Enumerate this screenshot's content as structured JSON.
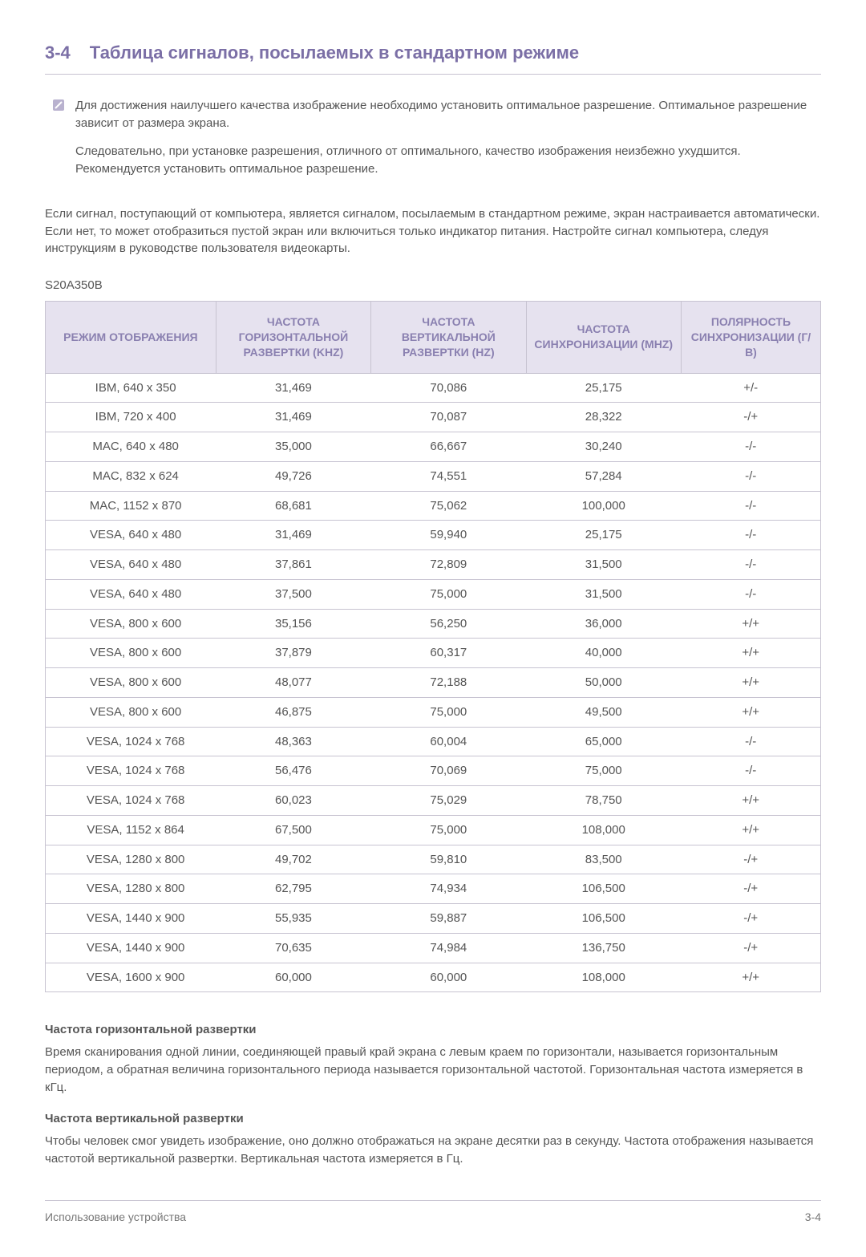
{
  "section": {
    "number": "3-4",
    "title": "Таблица сигналов, посылаемых в стандартном режиме"
  },
  "note": {
    "para1": "Для достижения наилучшего качества изображение необходимо установить оптимальное разрешение. Оптимальное разрешение зависит от размера экрана.",
    "para2": "Следовательно, при установке разрешения, отличного от оптимального, качество изображения неизбежно ухудшится. Рекомендуется установить оптимальное разрешение."
  },
  "intro": "Если сигнал, поступающий от компьютера, является сигналом, посылаемым в стандартном режиме, экран настраивается автоматически. Если нет, то может отобразиться пустой экран или включиться только индикатор питания. Настройте сигнал компьютера, следуя инструкциям в руководстве пользователя видеокарты.",
  "model": "S20A350B",
  "table": {
    "columns": [
      "РЕЖИМ ОТОБРАЖЕНИЯ",
      "ЧАСТОТА ГОРИЗОНТАЛЬНОЙ РАЗВЕРТКИ (KHZ)",
      "ЧАСТОТА ВЕРТИКАЛЬНОЙ РАЗВЕРТКИ (HZ)",
      "ЧАСТОТА СИНХРОНИЗАЦИИ (MHZ)",
      "ПОЛЯРНОСТЬ СИНХРОНИЗАЦИИ (Г/В)"
    ],
    "col_widths": [
      "22%",
      "20%",
      "20%",
      "20%",
      "18%"
    ],
    "header_bg": "#e6e2ef",
    "header_color": "#8a80b0",
    "border_color": "#c7c3d1",
    "rows": [
      [
        "IBM, 640 x 350",
        "31,469",
        "70,086",
        "25,175",
        "+/-"
      ],
      [
        "IBM, 720 x 400",
        "31,469",
        "70,087",
        "28,322",
        "-/+"
      ],
      [
        "MAC, 640 x 480",
        "35,000",
        "66,667",
        "30,240",
        "-/-"
      ],
      [
        "MAC, 832 x 624",
        "49,726",
        "74,551",
        "57,284",
        "-/-"
      ],
      [
        "MAC, 1152 x 870",
        "68,681",
        "75,062",
        "100,000",
        "-/-"
      ],
      [
        "VESA, 640 x 480",
        "31,469",
        "59,940",
        "25,175",
        "-/-"
      ],
      [
        "VESA, 640 x 480",
        "37,861",
        "72,809",
        "31,500",
        "-/-"
      ],
      [
        "VESA, 640 x 480",
        "37,500",
        "75,000",
        "31,500",
        "-/-"
      ],
      [
        "VESA, 800 x 600",
        "35,156",
        "56,250",
        "36,000",
        "+/+"
      ],
      [
        "VESA, 800 x 600",
        "37,879",
        "60,317",
        "40,000",
        "+/+"
      ],
      [
        "VESA, 800 x 600",
        "48,077",
        "72,188",
        "50,000",
        "+/+"
      ],
      [
        "VESA, 800 x 600",
        "46,875",
        "75,000",
        "49,500",
        "+/+"
      ],
      [
        "VESA, 1024 x 768",
        "48,363",
        "60,004",
        "65,000",
        "-/-"
      ],
      [
        "VESA, 1024 x 768",
        "56,476",
        "70,069",
        "75,000",
        "-/-"
      ],
      [
        "VESA, 1024 x 768",
        "60,023",
        "75,029",
        "78,750",
        "+/+"
      ],
      [
        "VESA, 1152 x 864",
        "67,500",
        "75,000",
        "108,000",
        "+/+"
      ],
      [
        "VESA, 1280 x 800",
        "49,702",
        "59,810",
        "83,500",
        "-/+"
      ],
      [
        "VESA, 1280 x 800",
        "62,795",
        "74,934",
        "106,500",
        "-/+"
      ],
      [
        "VESA, 1440 x 900",
        "55,935",
        "59,887",
        "106,500",
        "-/+"
      ],
      [
        "VESA, 1440 x 900",
        "70,635",
        "74,984",
        "136,750",
        "-/+"
      ],
      [
        "VESA, 1600 x 900",
        "60,000",
        "60,000",
        "108,000",
        "+/+"
      ]
    ]
  },
  "defs": {
    "h_title": "Частота горизонтальной развертки",
    "h_body": "Время сканирования одной линии, соединяющей правый край экрана с левым краем по горизонтали, называется горизонтальным периодом, а обратная величина горизонтального периода называется горизонтальной частотой. Горизонтальная частота измеряется в кГц.",
    "v_title": "Частота вертикальной развертки",
    "v_body": "Чтобы человек смог увидеть изображение, оно должно отображаться на экране десятки раз в секунду. Частота отображения называется частотой вертикальной развертки. Вертикальная частота измеряется в Гц."
  },
  "footer": {
    "left": "Использование устройства",
    "right": "3-4"
  }
}
